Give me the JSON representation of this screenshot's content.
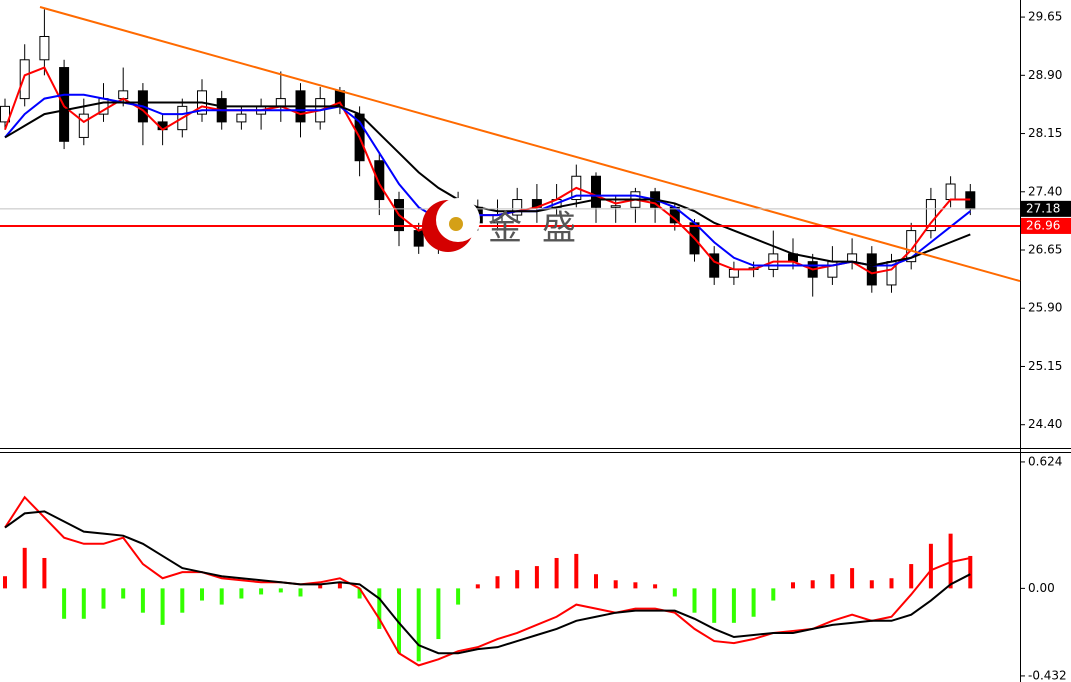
{
  "chart_data": [
    {
      "type": "candlestick",
      "open": [
        28.3,
        28.6,
        29.1,
        29.0,
        28.1,
        28.4,
        28.6,
        28.7,
        28.3,
        28.2,
        28.4,
        28.6,
        28.3,
        28.4,
        28.5,
        28.7,
        28.3,
        28.7,
        28.4,
        27.8,
        27.3,
        26.9,
        26.7,
        27.0,
        27.2,
        27.0,
        27.1,
        27.3,
        27.2,
        27.3,
        27.6,
        27.2,
        27.2,
        27.4,
        27.2,
        27.0,
        26.6,
        26.3,
        26.4,
        26.4,
        26.6,
        26.5,
        26.3,
        26.5,
        26.6,
        26.2,
        26.5,
        26.9,
        27.3,
        27.4
      ],
      "high": [
        28.6,
        29.3,
        29.75,
        29.1,
        28.6,
        28.8,
        29.0,
        28.8,
        28.4,
        28.6,
        28.85,
        28.7,
        28.5,
        28.6,
        28.95,
        28.8,
        28.75,
        28.75,
        28.5,
        27.9,
        27.4,
        27.0,
        27.2,
        27.4,
        27.3,
        27.3,
        27.45,
        27.5,
        27.5,
        27.75,
        27.65,
        27.35,
        27.45,
        27.45,
        27.25,
        27.05,
        26.7,
        26.5,
        26.5,
        26.9,
        26.8,
        26.6,
        26.7,
        26.8,
        26.7,
        26.6,
        27.0,
        27.45,
        27.6,
        27.5
      ],
      "low": [
        28.2,
        28.5,
        28.9,
        27.95,
        28.0,
        28.3,
        28.5,
        28.0,
        28.0,
        28.1,
        28.3,
        28.2,
        28.2,
        28.2,
        28.3,
        28.1,
        28.2,
        28.4,
        27.6,
        27.1,
        26.7,
        26.6,
        26.6,
        26.9,
        26.9,
        26.9,
        27.0,
        27.0,
        27.1,
        27.2,
        27.0,
        27.0,
        27.0,
        27.0,
        26.9,
        26.5,
        26.2,
        26.2,
        26.3,
        26.3,
        26.4,
        26.05,
        26.2,
        26.4,
        26.1,
        26.1,
        26.4,
        26.8,
        27.2,
        27.1
      ],
      "close": [
        28.5,
        29.1,
        29.4,
        28.05,
        28.4,
        28.6,
        28.7,
        28.3,
        28.2,
        28.5,
        28.7,
        28.3,
        28.4,
        28.5,
        28.6,
        28.3,
        28.6,
        28.5,
        27.8,
        27.3,
        26.9,
        26.7,
        27.1,
        27.2,
        27.0,
        27.1,
        27.3,
        27.2,
        27.3,
        27.6,
        27.2,
        27.22,
        27.4,
        27.2,
        27.0,
        26.6,
        26.3,
        26.4,
        26.42,
        26.6,
        26.5,
        26.3,
        26.5,
        26.6,
        26.2,
        26.5,
        26.9,
        27.3,
        27.5,
        27.18
      ],
      "up_color": "#ffffff",
      "down_color": "#000000",
      "series": [
        {
          "color": "#ff0000",
          "values": [
            28.2,
            28.9,
            29.0,
            28.5,
            28.3,
            28.45,
            28.6,
            28.45,
            28.2,
            28.35,
            28.5,
            28.45,
            28.45,
            28.45,
            28.5,
            28.4,
            28.45,
            28.55,
            28.1,
            27.5,
            27.1,
            26.9,
            27.0,
            27.15,
            27.1,
            27.1,
            27.15,
            27.2,
            27.3,
            27.45,
            27.35,
            27.25,
            27.3,
            27.25,
            27.05,
            26.8,
            26.5,
            26.4,
            26.4,
            26.5,
            26.5,
            26.4,
            26.45,
            26.5,
            26.35,
            26.4,
            26.65,
            27.0,
            27.3,
            27.3
          ]
        },
        {
          "color": "#0000ff",
          "values": [
            28.1,
            28.4,
            28.6,
            28.65,
            28.65,
            28.6,
            28.55,
            28.5,
            28.4,
            28.4,
            28.45,
            28.45,
            28.45,
            28.45,
            28.45,
            28.45,
            28.45,
            28.5,
            28.3,
            27.9,
            27.5,
            27.2,
            27.05,
            27.05,
            27.1,
            27.1,
            27.15,
            27.15,
            27.25,
            27.35,
            27.35,
            27.35,
            27.35,
            27.3,
            27.2,
            27.0,
            26.75,
            26.55,
            26.45,
            26.45,
            26.45,
            26.45,
            26.45,
            26.5,
            26.45,
            26.45,
            26.55,
            26.75,
            26.95,
            27.15
          ]
        },
        {
          "color": "#000000",
          "values": [
            28.1,
            28.25,
            28.4,
            28.45,
            28.5,
            28.55,
            28.55,
            28.55,
            28.55,
            28.55,
            28.55,
            28.5,
            28.5,
            28.5,
            28.5,
            28.5,
            28.5,
            28.5,
            28.4,
            28.15,
            27.9,
            27.65,
            27.45,
            27.3,
            27.2,
            27.15,
            27.15,
            27.15,
            27.2,
            27.25,
            27.3,
            27.3,
            27.3,
            27.3,
            27.25,
            27.15,
            27.0,
            26.9,
            26.8,
            26.7,
            26.6,
            26.55,
            26.5,
            26.5,
            26.45,
            26.5,
            26.55,
            26.65,
            26.75,
            26.85
          ]
        }
      ],
      "trendline": {
        "values": [
          29.78,
          26.25
        ],
        "color": "#ff6a00"
      },
      "hlines": [
        {
          "value": 27.18,
          "color": "#c0c0c0",
          "label_color": "#000000"
        },
        {
          "value": 26.96,
          "color": "#ff0000",
          "label_color": "#ff0000"
        }
      ],
      "watermark": "金盛",
      "ylim": [
        24.1,
        29.87
      ],
      "yticks": [
        29.65,
        {
          "value": 28.9,
          "label": "28.90"
        },
        28.15,
        {
          "value": 27.4,
          "label": "27.40"
        },
        26.65,
        {
          "value": 25.9,
          "label": "25.90"
        },
        25.15,
        {
          "value": 24.4,
          "label": "24.40"
        }
      ]
    },
    {
      "type": "macd",
      "values": [
        0.06,
        0.2,
        0.15,
        -0.15,
        -0.15,
        -0.1,
        -0.05,
        -0.12,
        -0.18,
        -0.12,
        -0.06,
        -0.08,
        -0.05,
        -0.03,
        -0.02,
        -0.04,
        0.02,
        0.03,
        -0.05,
        -0.2,
        -0.32,
        -0.36,
        -0.25,
        -0.08,
        0.02,
        0.06,
        0.09,
        0.11,
        0.15,
        0.17,
        0.07,
        0.04,
        0.03,
        0.02,
        -0.04,
        -0.12,
        -0.17,
        -0.17,
        -0.14,
        -0.06,
        0.03,
        0.04,
        0.07,
        0.1,
        0.04,
        0.05,
        0.12,
        0.22,
        0.27,
        0.16
      ],
      "up_color": "#ff0000",
      "down_color": "#33ff00",
      "series": [
        {
          "color": "#ff0000",
          "values": [
            0.3,
            0.45,
            0.35,
            0.25,
            0.22,
            0.22,
            0.25,
            0.12,
            0.05,
            0.08,
            0.08,
            0.05,
            0.04,
            0.03,
            0.03,
            0.02,
            0.03,
            0.05,
            0.0,
            -0.15,
            -0.32,
            -0.38,
            -0.35,
            -0.31,
            -0.29,
            -0.25,
            -0.22,
            -0.18,
            -0.14,
            -0.08,
            -0.1,
            -0.12,
            -0.1,
            -0.1,
            -0.12,
            -0.2,
            -0.26,
            -0.27,
            -0.25,
            -0.22,
            -0.21,
            -0.2,
            -0.16,
            -0.13,
            -0.16,
            -0.14,
            -0.03,
            0.09,
            0.13,
            0.15
          ]
        },
        {
          "color": "#000000",
          "values": [
            0.3,
            0.37,
            0.38,
            0.33,
            0.28,
            0.27,
            0.26,
            0.22,
            0.16,
            0.1,
            0.08,
            0.06,
            0.05,
            0.04,
            0.03,
            0.02,
            0.02,
            0.03,
            0.02,
            -0.05,
            -0.17,
            -0.28,
            -0.32,
            -0.32,
            -0.3,
            -0.29,
            -0.26,
            -0.23,
            -0.2,
            -0.16,
            -0.14,
            -0.12,
            -0.11,
            -0.11,
            -0.11,
            -0.15,
            -0.2,
            -0.24,
            -0.23,
            -0.22,
            -0.22,
            -0.2,
            -0.18,
            -0.17,
            -0.16,
            -0.16,
            -0.13,
            -0.06,
            0.02,
            0.07
          ]
        }
      ],
      "ylim": [
        -0.462,
        0.673
      ],
      "yticks": [
        0.624,
        {
          "value": 0,
          "label": "0.00"
        },
        -0.432
      ]
    }
  ]
}
